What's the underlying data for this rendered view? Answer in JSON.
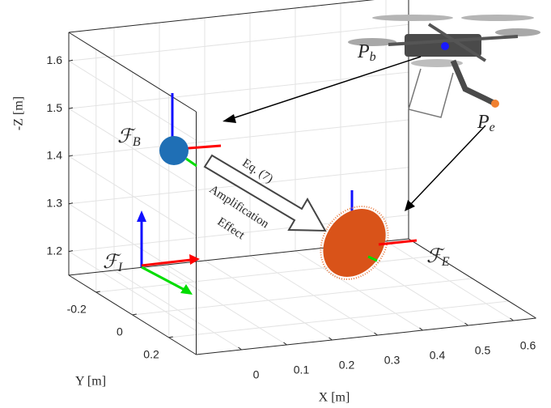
{
  "chart_data": {
    "type": "plot3d",
    "xlabel": "X [m]",
    "ylabel": "Y [m]",
    "zlabel": "-Z [m]",
    "xlim": [
      -0.1,
      0.65
    ],
    "ylim": [
      -0.35,
      0.35
    ],
    "zlim": [
      1.15,
      1.66
    ],
    "xticks": [
      0,
      0.1,
      0.2,
      0.3,
      0.4,
      0.5,
      0.6
    ],
    "yticks": [
      -0.2,
      0,
      0.2
    ],
    "zticks": [
      1.2,
      1.3,
      1.4,
      1.5,
      1.6
    ],
    "grid": true,
    "annotations": [
      {
        "text": "ℱ",
        "sub": "B"
      },
      {
        "text": "ℱ",
        "sub": "E"
      },
      {
        "text": "ℱ",
        "sub": "I"
      },
      {
        "text": "P",
        "sub": "b"
      },
      {
        "text": "P",
        "sub": "e"
      },
      {
        "text": "Eq. (7)"
      },
      {
        "text": "Amplification"
      },
      {
        "text": "Effect"
      }
    ]
  }
}
